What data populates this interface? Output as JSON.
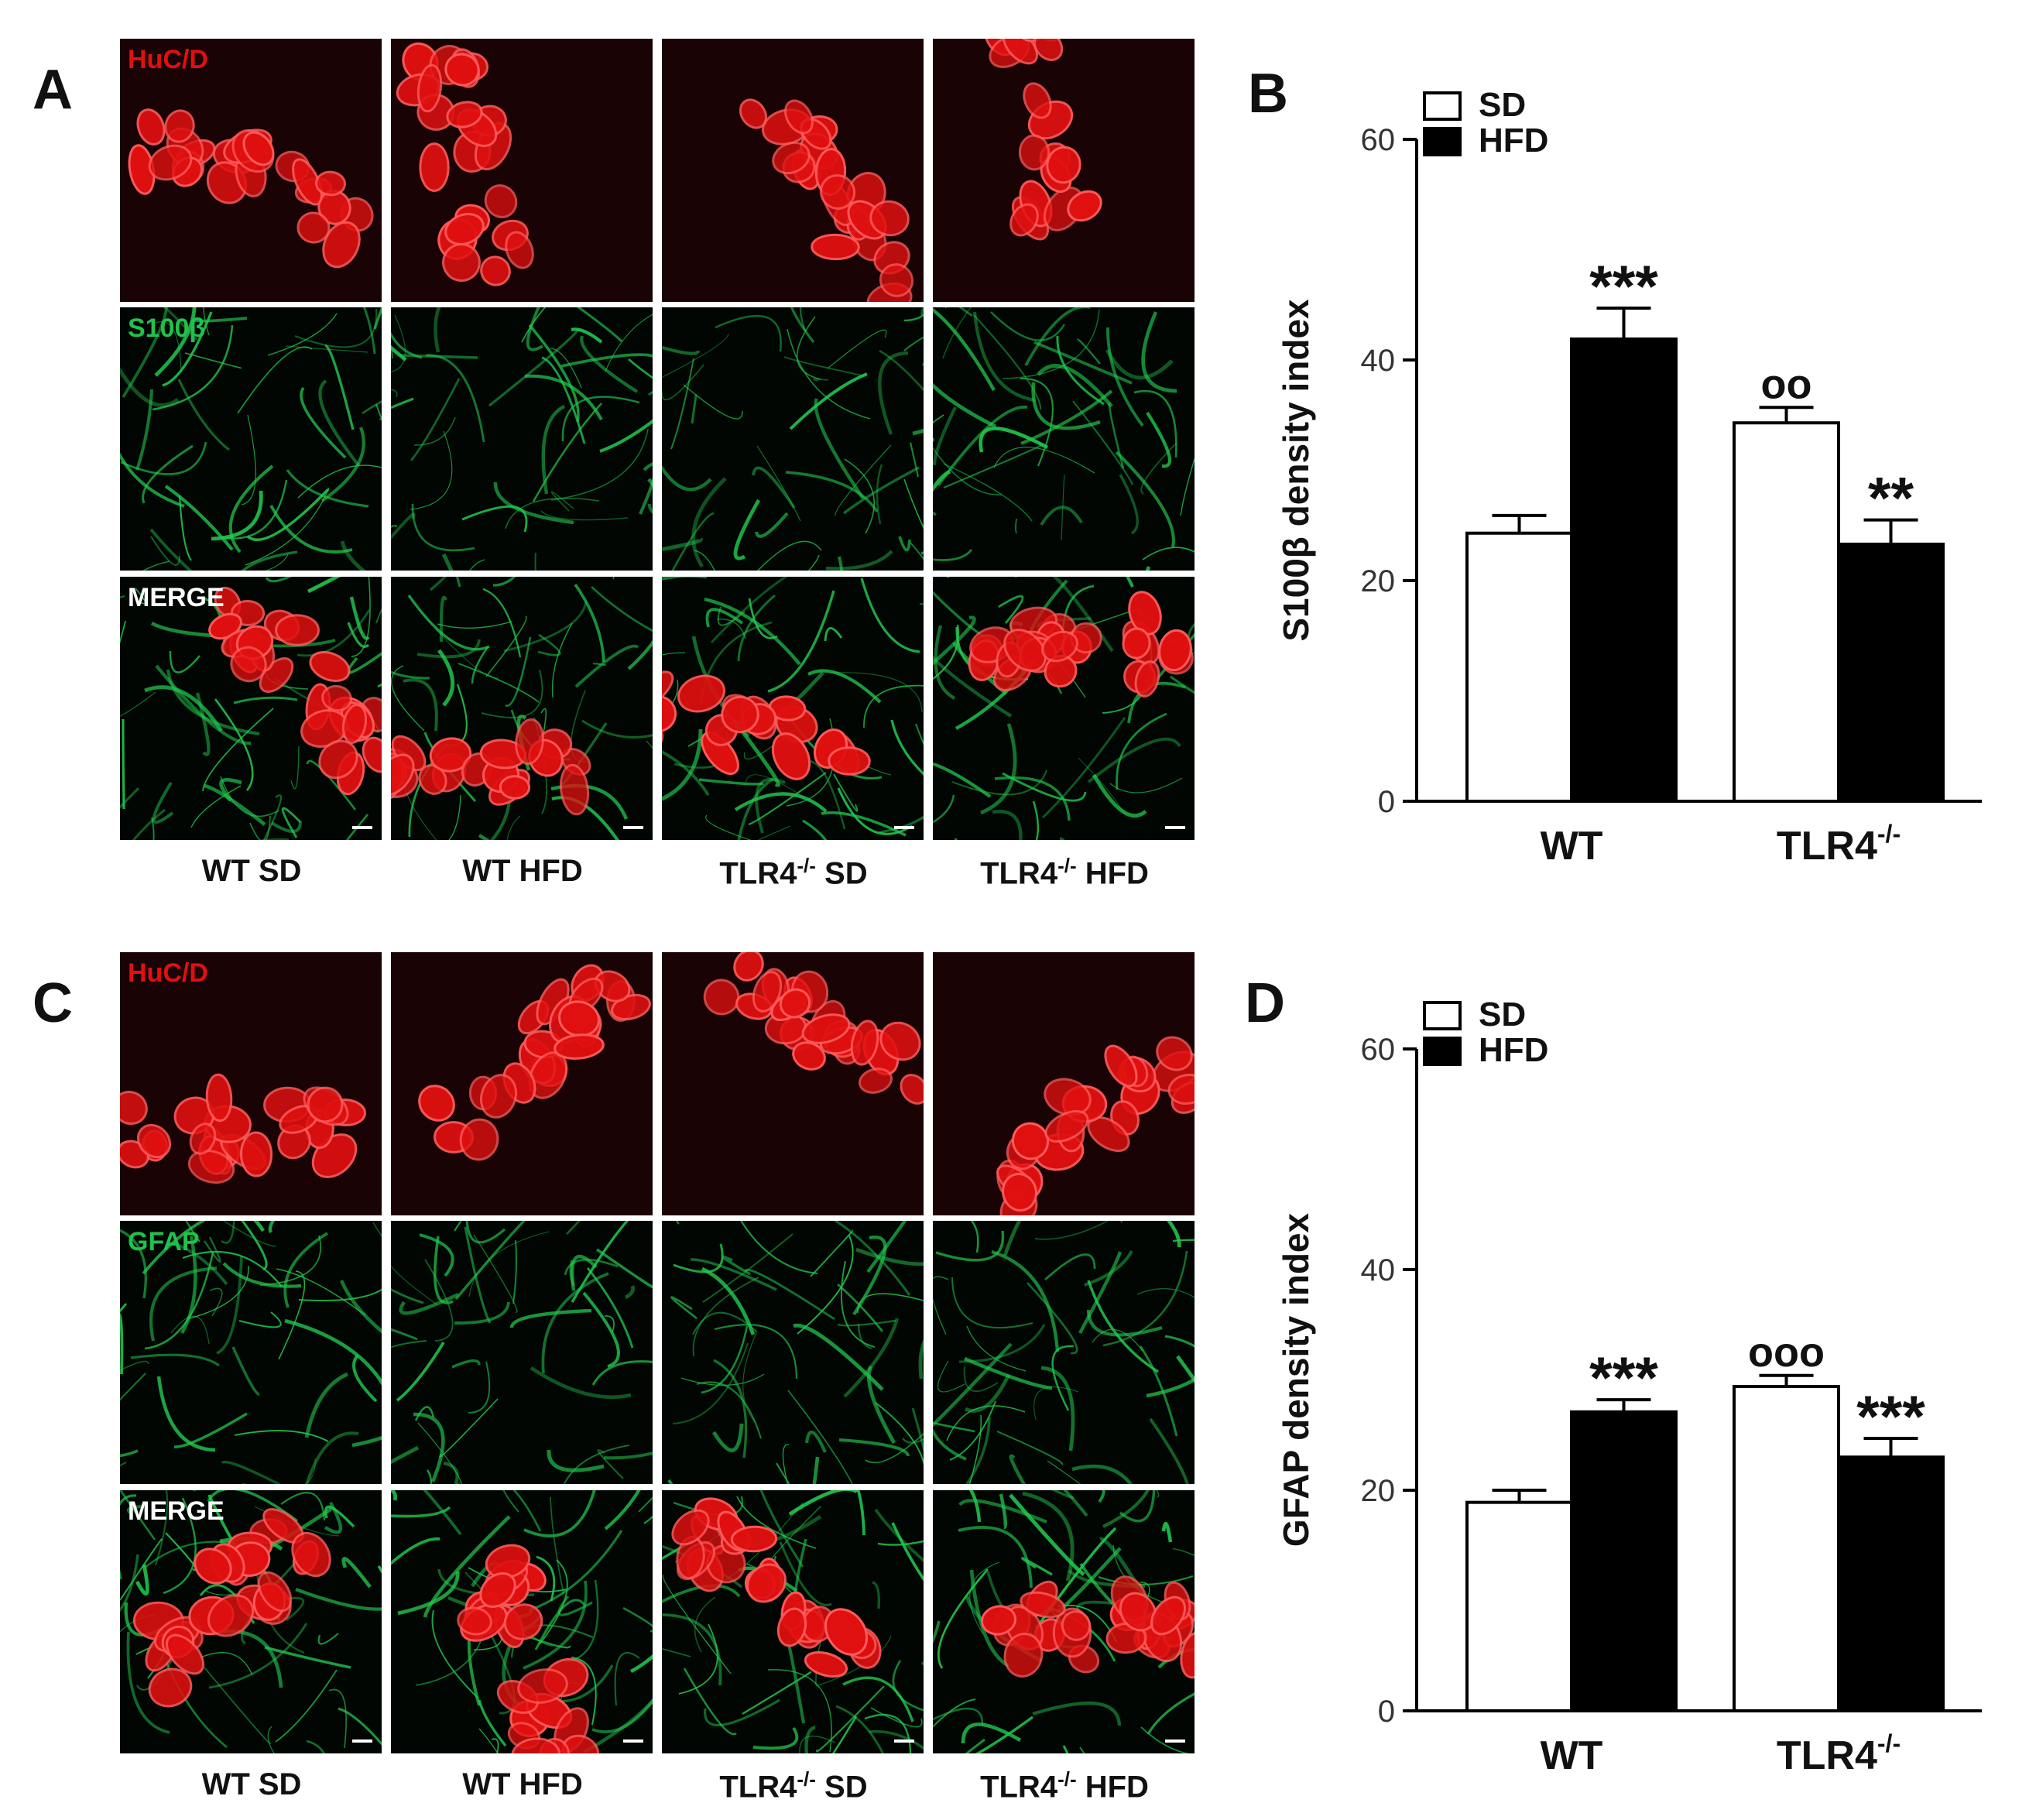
{
  "figure": {
    "panel_letters": [
      "A",
      "B",
      "C",
      "D"
    ],
    "column_labels": [
      {
        "prefix": "WT SD",
        "sup": "",
        "suffix": ""
      },
      {
        "prefix": "WT HFD",
        "sup": "",
        "suffix": ""
      },
      {
        "prefix": "TLR4",
        "sup": "-/-",
        "suffix": " SD"
      },
      {
        "prefix": "TLR4",
        "sup": "-/-",
        "suffix": " HFD"
      }
    ],
    "panelA": {
      "row_labels": [
        "HuC/D",
        "S100β",
        "MERGE"
      ]
    },
    "panelC": {
      "row_labels": [
        "HuC/D",
        "GFAP",
        "MERGE"
      ]
    },
    "colors": {
      "red_channel": "#e01010",
      "green_channel": "#1fc24a",
      "merge_label": "#ffffff",
      "sd_fill": "#ffffff",
      "hfd_fill": "#000000"
    }
  },
  "chart_data": [
    {
      "type": "bar",
      "panel": "B",
      "categories": [
        "WT",
        "TLR4-/-"
      ],
      "category_labels": [
        {
          "main": "WT",
          "sup": ""
        },
        {
          "main": "TLR4",
          "sup": "-/-"
        }
      ],
      "series": [
        {
          "name": "SD",
          "values": [
            24.3,
            34.3
          ],
          "errors": [
            1.6,
            1.4
          ],
          "color": "#ffffff"
        },
        {
          "name": "HFD",
          "values": [
            41.9,
            23.3
          ],
          "errors": [
            2.8,
            2.2
          ],
          "color": "#000000"
        }
      ],
      "annotations": [
        {
          "series": 1,
          "category": 0,
          "text": "***"
        },
        {
          "series": 0,
          "category": 1,
          "text": "oo"
        },
        {
          "series": 1,
          "category": 1,
          "text": "**"
        }
      ],
      "ylabel": "S100β density index",
      "ylim": [
        0,
        60
      ],
      "yticks": [
        0,
        20,
        40,
        60
      ],
      "legend": "top-left"
    },
    {
      "type": "bar",
      "panel": "D",
      "categories": [
        "WT",
        "TLR4-/-"
      ],
      "category_labels": [
        {
          "main": "WT",
          "sup": ""
        },
        {
          "main": "TLR4",
          "sup": "-/-"
        }
      ],
      "series": [
        {
          "name": "SD",
          "values": [
            18.9,
            29.4
          ],
          "errors": [
            1.1,
            1.0
          ],
          "color": "#ffffff"
        },
        {
          "name": "HFD",
          "values": [
            27.1,
            23.0
          ],
          "errors": [
            1.1,
            1.7
          ],
          "color": "#000000"
        }
      ],
      "annotations": [
        {
          "series": 1,
          "category": 0,
          "text": "***"
        },
        {
          "series": 0,
          "category": 1,
          "text": "ooo"
        },
        {
          "series": 1,
          "category": 1,
          "text": "***"
        }
      ],
      "ylabel": "GFAP density index",
      "ylim": [
        0,
        60
      ],
      "yticks": [
        0,
        20,
        40,
        60
      ],
      "legend": "top-left"
    }
  ]
}
